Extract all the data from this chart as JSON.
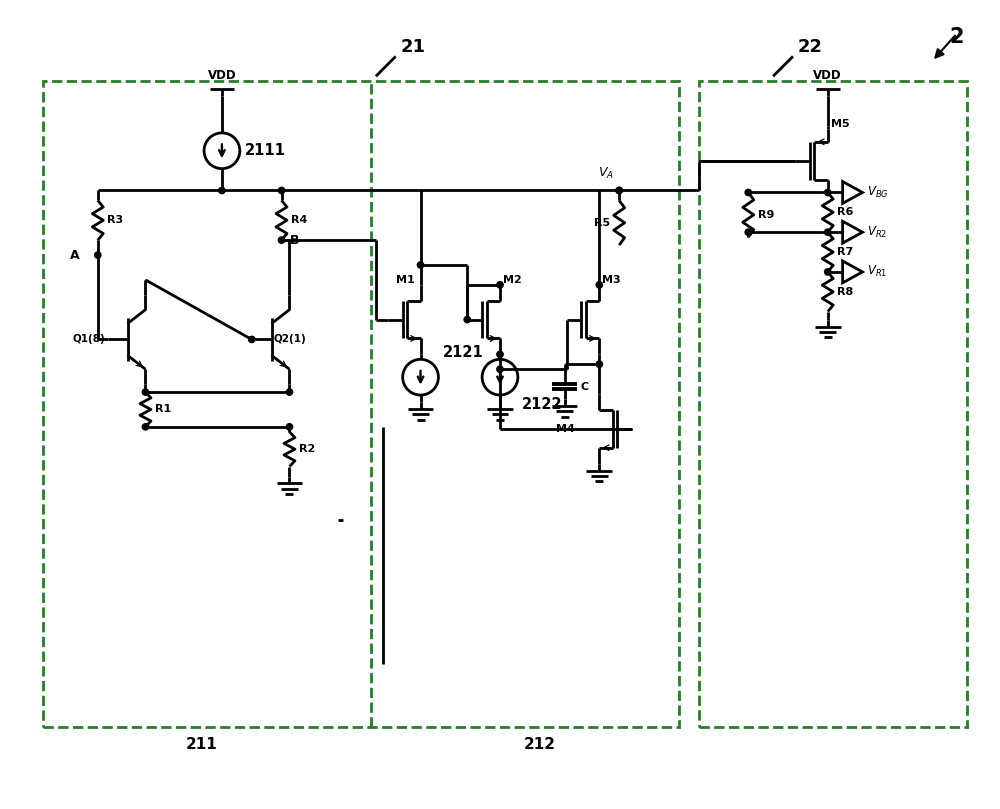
{
  "bg_color": "#ffffff",
  "lc": "#000000",
  "dc": "#2d7a2d",
  "lw": 2.0,
  "dlw": 2.0,
  "fig_label": "2",
  "b21": "21",
  "b22": "22",
  "b211": "211",
  "b212": "212",
  "cs2111": "2111",
  "cs2121": "2121",
  "cs2122": "2122",
  "lA": "A",
  "lB": "B",
  "lC": "C",
  "lVA": "V",
  "lVBG": "V",
  "lVR2": "V",
  "lVR1": "V",
  "lQ1": "Q1(8)",
  "lQ2": "Q2(1)",
  "lM1": "M1",
  "lM2": "M2",
  "lM3": "M3",
  "lM4": "M4",
  "lM5": "M5",
  "lR1": "R1",
  "lR2": "R2",
  "lR3": "R3",
  "lR4": "R4",
  "lR5": "R5",
  "lR6": "R6",
  "lR7": "R7",
  "lR8": "R8",
  "lR9": "R9",
  "VDD": "VDD"
}
